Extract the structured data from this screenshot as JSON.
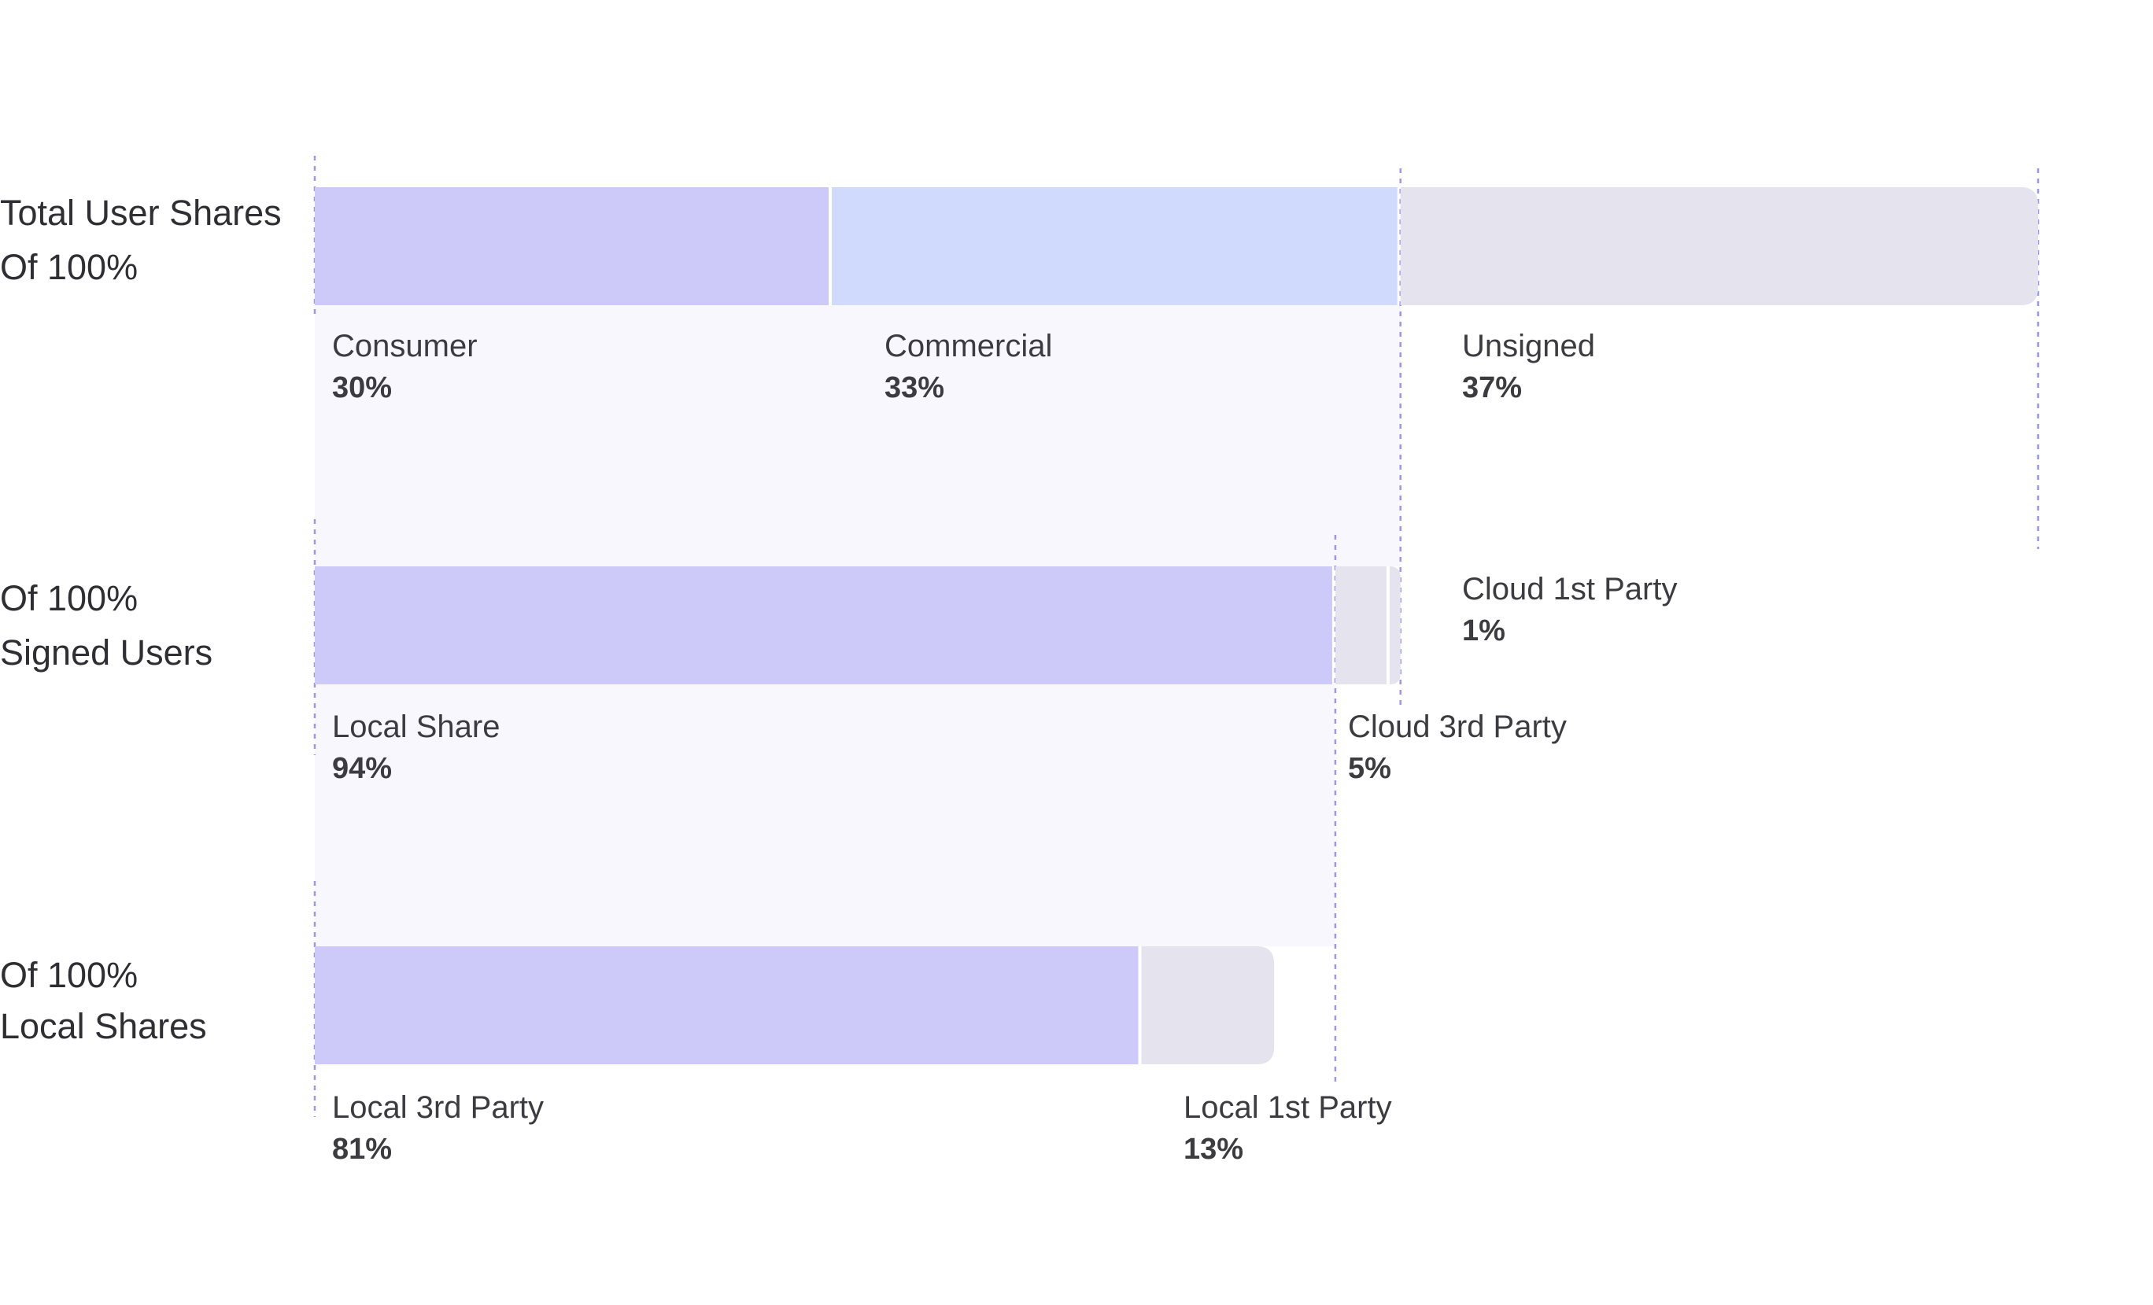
{
  "chart_data": {
    "type": "bar",
    "orientation": "horizontal-stacked",
    "title": "",
    "rows": [
      {
        "label_lines": [
          "Total User Shares",
          "Of 100%"
        ],
        "segments": [
          {
            "name": "Consumer",
            "value": 30,
            "value_label": "30%",
            "color": "#cdcafa"
          },
          {
            "name": "Commercial",
            "value": 33,
            "value_label": "33%",
            "color": "#cfdafd"
          },
          {
            "name": "Unsigned",
            "value": 37,
            "value_label": "37%",
            "color": "#e4e3ee"
          }
        ]
      },
      {
        "label_lines": [
          "Of 100%",
          "Signed Users"
        ],
        "segments": [
          {
            "name": "Local Share",
            "value": 94,
            "value_label": "94%",
            "color": "#cdcafa"
          },
          {
            "name": "Cloud 3rd Party",
            "value": 5,
            "value_label": "5%",
            "color": "#e4e3ee"
          },
          {
            "name": "Cloud 1st Party",
            "value": 1,
            "value_label": "1%",
            "color": "#e4e3ee"
          }
        ]
      },
      {
        "label_lines": [
          "Of 100%",
          "Local Shares"
        ],
        "segments": [
          {
            "name": "Local 3rd Party",
            "value": 81,
            "value_label": "81%",
            "color": "#cdcafa"
          },
          {
            "name": "Local 1st Party",
            "value": 13,
            "value_label": "13%",
            "color": "#e4e3ee"
          }
        ]
      }
    ],
    "guide_color": "#9c98e6",
    "band_color": "#f8f7fe"
  }
}
